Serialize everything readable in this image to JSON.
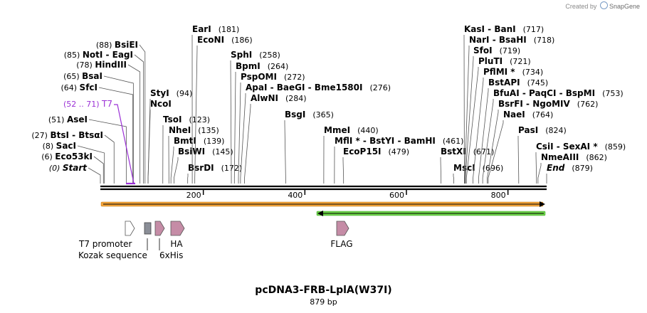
{
  "credit": {
    "prefix": "Created by",
    "brand": "SnapGene"
  },
  "map": {
    "title": "pcDNA3-FRB-LplA(W37I)",
    "length_label": "879 bp",
    "length_bp": 879,
    "ruler": {
      "ticks": [
        200,
        400,
        600,
        800
      ],
      "labels": [
        "200",
        "400",
        "600",
        "800"
      ]
    }
  },
  "sites": [
    {
      "name": "Start",
      "pos_label": "(0)",
      "bp": 0,
      "italic": true
    },
    {
      "name": "Eco53kI",
      "pos_label": "(6)",
      "bp": 6
    },
    {
      "name": "SacI",
      "pos_label": "(8)",
      "bp": 8
    },
    {
      "name": "BtsI - BtsαI",
      "pos_label": "(27)",
      "bp": 27
    },
    {
      "name": "AseI",
      "pos_label": "(51)",
      "bp": 51
    },
    {
      "name": "SfcI",
      "pos_label": "(64)",
      "bp": 64
    },
    {
      "name": "BsaI",
      "pos_label": "(65)",
      "bp": 65
    },
    {
      "name": "HindIII",
      "pos_label": "(78)",
      "bp": 78
    },
    {
      "name": "NotI - EagI",
      "pos_label": "(85)",
      "bp": 85
    },
    {
      "name": "BsiEI",
      "pos_label": "(88)",
      "bp": 88
    },
    {
      "name": "NcoI",
      "pos_label": "",
      "bp": 94
    },
    {
      "name": "StyI",
      "pos_label": "(94)",
      "bp": 94
    },
    {
      "name": "TsoI",
      "pos_label": "(123)",
      "bp": 123
    },
    {
      "name": "NheI",
      "pos_label": "(135)",
      "bp": 135
    },
    {
      "name": "BmtI",
      "pos_label": "(139)",
      "bp": 139
    },
    {
      "name": "BsiWI",
      "pos_label": "(145)",
      "bp": 145
    },
    {
      "name": "BsrDI",
      "pos_label": "(172)",
      "bp": 172
    },
    {
      "name": "EarI",
      "pos_label": "(181)",
      "bp": 181
    },
    {
      "name": "EcoNI",
      "pos_label": "(186)",
      "bp": 186
    },
    {
      "name": "SphI",
      "pos_label": "(258)",
      "bp": 258
    },
    {
      "name": "BpmI",
      "pos_label": "(264)",
      "bp": 264
    },
    {
      "name": "PspOMI",
      "pos_label": "(272)",
      "bp": 272
    },
    {
      "name": "ApaI - BaeGI - Bme1580I",
      "pos_label": "(276)",
      "bp": 276
    },
    {
      "name": "AlwNI",
      "pos_label": "(284)",
      "bp": 284
    },
    {
      "name": "BsgI",
      "pos_label": "(365)",
      "bp": 365
    },
    {
      "name": "MmeI",
      "pos_label": "(440)",
      "bp": 440
    },
    {
      "name": "MflI * - BstYI - BamHI",
      "pos_label": "(461)",
      "bp": 461
    },
    {
      "name": "EcoP15I",
      "pos_label": "(479)",
      "bp": 479
    },
    {
      "name": "BstXI",
      "pos_label": "(671)",
      "bp": 671
    },
    {
      "name": "MscI",
      "pos_label": "(696)",
      "bp": 696
    },
    {
      "name": "KasI - BanI",
      "pos_label": "(717)",
      "bp": 717
    },
    {
      "name": "NarI - BsaHI",
      "pos_label": "(718)",
      "bp": 718
    },
    {
      "name": "SfoI",
      "pos_label": "(719)",
      "bp": 719
    },
    {
      "name": "PluTI",
      "pos_label": "(721)",
      "bp": 721
    },
    {
      "name": "PflMI *",
      "pos_label": "(734)",
      "bp": 734
    },
    {
      "name": "BstAPI",
      "pos_label": "(745)",
      "bp": 745
    },
    {
      "name": "BfuAI - PaqCI - BspMI",
      "pos_label": "(753)",
      "bp": 753
    },
    {
      "name": "BsrFI - NgoMIV",
      "pos_label": "(762)",
      "bp": 762
    },
    {
      "name": "NaeI",
      "pos_label": "(764)",
      "bp": 764
    },
    {
      "name": "PasI",
      "pos_label": "(824)",
      "bp": 824
    },
    {
      "name": "CsiI - SexAI *",
      "pos_label": "(859)",
      "bp": 859
    },
    {
      "name": "NmeAIII",
      "pos_label": "(862)",
      "bp": 862
    },
    {
      "name": "End",
      "pos_label": "(879)",
      "bp": 879,
      "italic": true
    }
  ],
  "primer": {
    "name": "T7",
    "range_label": "(52 .. 71)",
    "start_bp": 52,
    "end_bp": 71,
    "color": "#9b30d6"
  },
  "features": [
    {
      "name": "T7 promoter",
      "shape": "arrow",
      "color": "#ffffff"
    },
    {
      "name": "Kozak sequence",
      "shape": "box",
      "color": "#8a8e97"
    },
    {
      "name": "6xHis",
      "shape": "arrow",
      "color": "#c58ca6"
    },
    {
      "name": "HA",
      "shape": "arrow",
      "color": "#c58ca6"
    },
    {
      "name": "FLAG",
      "shape": "arrow",
      "color": "#c58ca6"
    }
  ],
  "orfs": [
    {
      "name": "forward ORF",
      "start_bp": 0,
      "end_bp": 879,
      "color": "#f2a33a"
    },
    {
      "name": "reverse ORF",
      "start_bp": 425,
      "end_bp": 879,
      "color": "#6fd64a"
    }
  ]
}
